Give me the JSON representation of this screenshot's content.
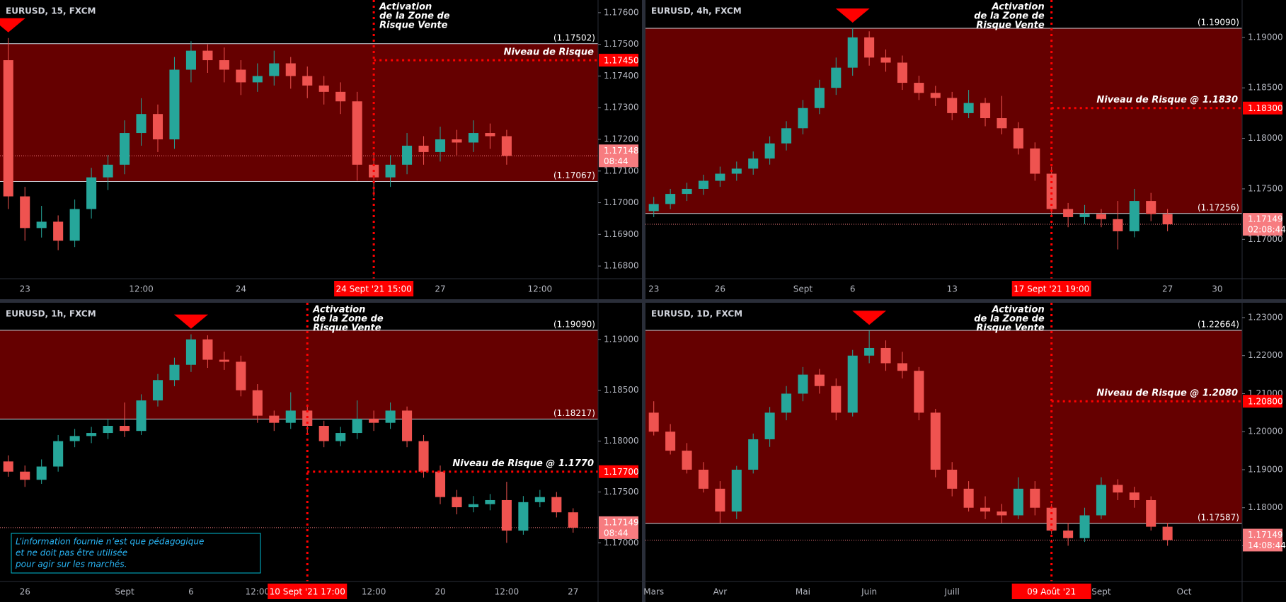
{
  "chart_data": [
    {
      "type": "candlestick",
      "title": "EURUSD, 15, FXCM",
      "categories": [
        null,
        "23",
        null,
        null,
        null,
        null,
        null,
        null,
        "12:00",
        null,
        null,
        null,
        null,
        null,
        "24",
        null,
        null,
        null,
        null,
        null,
        null,
        null,
        "24 Sept '21 15:00",
        null,
        null,
        null,
        "27",
        null,
        null,
        null,
        null,
        null,
        "12:00",
        null,
        null,
        null
      ],
      "candles": [
        [
          1.1745,
          1.1752,
          1.1698,
          1.1702
        ],
        [
          1.1702,
          1.1705,
          1.1688,
          1.1692
        ],
        [
          1.1692,
          1.1699,
          1.1689,
          1.1694
        ],
        [
          1.1694,
          1.1696,
          1.1685,
          1.1688
        ],
        [
          1.1688,
          1.1701,
          1.1686,
          1.1698
        ],
        [
          1.1698,
          1.1711,
          1.1695,
          1.1708
        ],
        [
          1.1708,
          1.1715,
          1.1704,
          1.1712
        ],
        [
          1.1712,
          1.1726,
          1.1709,
          1.1722
        ],
        [
          1.1722,
          1.1733,
          1.1718,
          1.1728
        ],
        [
          1.1728,
          1.1731,
          1.1716,
          1.172
        ],
        [
          1.172,
          1.1746,
          1.1717,
          1.1742
        ],
        [
          1.1742,
          1.1751,
          1.1738,
          1.1748
        ],
        [
          1.1748,
          1.175,
          1.1741,
          1.1745
        ],
        [
          1.1745,
          1.1749,
          1.1738,
          1.1742
        ],
        [
          1.1742,
          1.1745,
          1.1734,
          1.1738
        ],
        [
          1.1738,
          1.1744,
          1.1735,
          1.174
        ],
        [
          1.174,
          1.1748,
          1.1737,
          1.1744
        ],
        [
          1.1744,
          1.1746,
          1.1736,
          1.174
        ],
        [
          1.174,
          1.1743,
          1.1733,
          1.1737
        ],
        [
          1.1737,
          1.174,
          1.1731,
          1.1735
        ],
        [
          1.1735,
          1.1738,
          1.1728,
          1.1732
        ],
        [
          1.1732,
          1.1735,
          1.1707,
          1.1712
        ],
        [
          1.1712,
          1.1716,
          1.1702,
          1.1708
        ],
        [
          1.1708,
          1.1715,
          1.1705,
          1.1712
        ],
        [
          1.1712,
          1.1722,
          1.1709,
          1.1718
        ],
        [
          1.1718,
          1.1721,
          1.1712,
          1.1716
        ],
        [
          1.1716,
          1.1724,
          1.1713,
          1.172
        ],
        [
          1.172,
          1.1723,
          1.1715,
          1.1719
        ],
        [
          1.1719,
          1.1726,
          1.1716,
          1.1722
        ],
        [
          1.1722,
          1.1725,
          1.1717,
          1.1721
        ],
        [
          1.1721,
          1.1723,
          1.1712,
          1.17148
        ],
        null,
        null,
        null,
        null,
        null
      ],
      "colors": {
        "up": "#26a69a",
        "down": "#ef5350"
      },
      "ylim": [
        1.1676,
        1.1764
      ],
      "yticks": [
        {
          "value": 1.176,
          "label": "1.17600"
        },
        {
          "value": 1.175,
          "label": "1.17500"
        },
        {
          "value": 1.174,
          "label": "1.17400"
        },
        {
          "value": 1.173,
          "label": "1.17300"
        },
        {
          "value": 1.172,
          "label": "1.17200"
        },
        {
          "value": 1.171,
          "label": "1.17100"
        },
        {
          "value": 1.17,
          "label": "1.17000"
        },
        {
          "value": 1.169,
          "label": "1.16900"
        },
        {
          "value": 1.168,
          "label": "1.16800"
        }
      ],
      "zone": {
        "top": {
          "value": 1.17502,
          "label": "(1.17502)"
        },
        "bottom": {
          "value": 1.17067,
          "label": "(1.17067)"
        },
        "color": "#650000"
      },
      "risk": {
        "value": 1.1745,
        "label": "1.17450",
        "text": "Niveau de Risque"
      },
      "activation": {
        "index": 22,
        "text": [
          "Activation",
          "de la Zone de",
          "Risque Vente"
        ]
      },
      "price": {
        "value": 1.17148,
        "label": "1.17148",
        "countdown": "08:44"
      }
    },
    {
      "type": "candlestick",
      "title": "EURUSD, 4h, FXCM",
      "categories": [
        "23",
        null,
        null,
        null,
        "26",
        null,
        null,
        null,
        null,
        "Sept",
        null,
        null,
        "6",
        null,
        null,
        null,
        null,
        null,
        "13",
        null,
        null,
        null,
        null,
        null,
        "17 Sept '21 19:00",
        null,
        null,
        null,
        null,
        null,
        null,
        "27",
        null,
        null,
        "30",
        null
      ],
      "candles": [
        [
          1.1728,
          1.1742,
          1.1722,
          1.1735
        ],
        [
          1.1735,
          1.175,
          1.173,
          1.1745
        ],
        [
          1.1745,
          1.1756,
          1.1738,
          1.175
        ],
        [
          1.175,
          1.1764,
          1.1744,
          1.1758
        ],
        [
          1.1758,
          1.1772,
          1.1752,
          1.1765
        ],
        [
          1.1765,
          1.1777,
          1.1758,
          1.177
        ],
        [
          1.177,
          1.1787,
          1.1764,
          1.178
        ],
        [
          1.178,
          1.1802,
          1.1774,
          1.1795
        ],
        [
          1.1795,
          1.1817,
          1.1788,
          1.181
        ],
        [
          1.181,
          1.1838,
          1.1804,
          1.183
        ],
        [
          1.183,
          1.1858,
          1.1824,
          1.185
        ],
        [
          1.185,
          1.188,
          1.1843,
          1.187
        ],
        [
          1.187,
          1.1909,
          1.1862,
          1.19
        ],
        [
          1.19,
          1.1906,
          1.1872,
          1.188
        ],
        [
          1.188,
          1.1888,
          1.1866,
          1.1875
        ],
        [
          1.1875,
          1.1882,
          1.1848,
          1.1855
        ],
        [
          1.1855,
          1.1862,
          1.1838,
          1.1845
        ],
        [
          1.1845,
          1.1852,
          1.1832,
          1.184
        ],
        [
          1.184,
          1.1846,
          1.1818,
          1.1825
        ],
        [
          1.1825,
          1.1848,
          1.182,
          1.1835
        ],
        [
          1.1835,
          1.184,
          1.1812,
          1.182
        ],
        [
          1.182,
          1.1842,
          1.1804,
          1.181
        ],
        [
          1.181,
          1.1816,
          1.1784,
          1.179
        ],
        [
          1.179,
          1.1796,
          1.1758,
          1.1765
        ],
        [
          1.1765,
          1.1772,
          1.1722,
          1.173
        ],
        [
          1.173,
          1.1736,
          1.1712,
          1.1722
        ],
        [
          1.1722,
          1.1734,
          1.1715,
          1.1725
        ],
        [
          1.1725,
          1.173,
          1.1712,
          1.172
        ],
        [
          1.172,
          1.1738,
          1.169,
          1.1708
        ],
        [
          1.1708,
          1.175,
          1.1702,
          1.1738
        ],
        [
          1.1738,
          1.1746,
          1.1718,
          1.1725
        ],
        [
          1.1725,
          1.173,
          1.1708,
          1.17149
        ],
        null,
        null,
        null,
        null
      ],
      "colors": {
        "up": "#26a69a",
        "down": "#ef5350"
      },
      "ylim": [
        1.1661,
        1.1937
      ],
      "yticks": [
        {
          "value": 1.19,
          "label": "1.19000"
        },
        {
          "value": 1.185,
          "label": "1.18500"
        },
        {
          "value": 1.18,
          "label": "1.18000"
        },
        {
          "value": 1.175,
          "label": "1.17500"
        },
        {
          "value": 1.17,
          "label": "1.17000"
        }
      ],
      "zone": {
        "top": {
          "value": 1.1909,
          "label": "(1.19090)"
        },
        "bottom": {
          "value": 1.17256,
          "label": "(1.17256)"
        },
        "color": "#650000"
      },
      "risk": {
        "value": 1.183,
        "label": "1.18300",
        "text": "Niveau de Risque @ 1.1830"
      },
      "activation": {
        "index": 24,
        "text": [
          "Activation",
          "de la Zone de",
          "Risque Vente"
        ]
      },
      "price": {
        "value": 1.17149,
        "label": "1.17149",
        "countdown": "02:08:44"
      }
    },
    {
      "type": "candlestick",
      "title": "EURUSD, 1h, FXCM",
      "categories": [
        null,
        "26",
        null,
        null,
        null,
        null,
        null,
        "Sept",
        null,
        null,
        null,
        "6",
        null,
        null,
        null,
        "12:00",
        null,
        null,
        "10 Sept '21 17:00",
        null,
        null,
        null,
        "12:00",
        null,
        null,
        null,
        "20",
        null,
        null,
        null,
        "12:00",
        null,
        null,
        null,
        "27",
        null
      ],
      "candles": [
        [
          1.178,
          1.1786,
          1.1765,
          1.177
        ],
        [
          1.177,
          1.1776,
          1.1755,
          1.1762
        ],
        [
          1.1762,
          1.1782,
          1.1758,
          1.1775
        ],
        [
          1.1775,
          1.1806,
          1.177,
          1.18
        ],
        [
          1.18,
          1.1812,
          1.1794,
          1.1805
        ],
        [
          1.1805,
          1.1814,
          1.1798,
          1.1808
        ],
        [
          1.1808,
          1.1822,
          1.1802,
          1.1815
        ],
        [
          1.1815,
          1.1838,
          1.1804,
          1.181
        ],
        [
          1.181,
          1.1846,
          1.1806,
          1.184
        ],
        [
          1.184,
          1.1866,
          1.1834,
          1.186
        ],
        [
          1.186,
          1.1882,
          1.1854,
          1.1875
        ],
        [
          1.1875,
          1.1905,
          1.1868,
          1.19
        ],
        [
          1.19,
          1.1904,
          1.1872,
          1.188
        ],
        [
          1.188,
          1.1888,
          1.187,
          1.1878
        ],
        [
          1.1878,
          1.1884,
          1.1844,
          1.185
        ],
        [
          1.185,
          1.1856,
          1.1818,
          1.1825
        ],
        [
          1.1825,
          1.183,
          1.181,
          1.1818
        ],
        [
          1.1818,
          1.1848,
          1.1812,
          1.183
        ],
        [
          1.183,
          1.1836,
          1.1808,
          1.1815
        ],
        [
          1.1815,
          1.182,
          1.1794,
          1.18
        ],
        [
          1.18,
          1.1814,
          1.1795,
          1.1808
        ],
        [
          1.1808,
          1.184,
          1.1802,
          1.1822
        ],
        [
          1.1822,
          1.183,
          1.181,
          1.1818
        ],
        [
          1.1818,
          1.1838,
          1.1812,
          1.183
        ],
        [
          1.183,
          1.1834,
          1.1794,
          1.18
        ],
        [
          1.18,
          1.1806,
          1.1764,
          1.177
        ],
        [
          1.177,
          1.1776,
          1.1738,
          1.1745
        ],
        [
          1.1745,
          1.1752,
          1.1728,
          1.1735
        ],
        [
          1.1735,
          1.1746,
          1.173,
          1.1738
        ],
        [
          1.1738,
          1.1748,
          1.1732,
          1.1742
        ],
        [
          1.1742,
          1.176,
          1.17,
          1.1712
        ],
        [
          1.1712,
          1.1746,
          1.1708,
          1.174
        ],
        [
          1.174,
          1.1752,
          1.1735,
          1.1745
        ],
        [
          1.1745,
          1.175,
          1.1725,
          1.173
        ],
        [
          1.173,
          1.1734,
          1.171,
          1.17149
        ],
        null
      ],
      "colors": {
        "up": "#26a69a",
        "down": "#ef5350"
      },
      "ylim": [
        1.1662,
        1.1936
      ],
      "yticks": [
        {
          "value": 1.19,
          "label": "1.19000"
        },
        {
          "value": 1.185,
          "label": "1.18500"
        },
        {
          "value": 1.18,
          "label": "1.18000"
        },
        {
          "value": 1.175,
          "label": "1.17500"
        },
        {
          "value": 1.17,
          "label": "1.17000"
        }
      ],
      "zone": {
        "top": {
          "value": 1.1909,
          "label": "(1.19090)"
        },
        "bottom": {
          "value": 1.18217,
          "label": "(1.18217)"
        },
        "color": "#650000"
      },
      "risk": {
        "value": 1.177,
        "label": "1.17700",
        "text": "Niveau de Risque @ 1.1770"
      },
      "activation": {
        "index": 18,
        "text": [
          "Activation",
          "de la Zone de",
          "Risque Vente"
        ]
      },
      "price": {
        "value": 1.17149,
        "label": "1.17149",
        "countdown": "08:44"
      },
      "note": [
        "L’information fournie n’est que pédagogique",
        "et ne doit pas être utilisée",
        "pour agir sur les marchés."
      ]
    },
    {
      "type": "candlestick",
      "title": "EURUSD, 1D, FXCM",
      "categories": [
        "Mars",
        null,
        null,
        null,
        "Avr",
        null,
        null,
        null,
        null,
        "Mai",
        null,
        null,
        null,
        "Juin",
        null,
        null,
        null,
        null,
        "Juill",
        null,
        null,
        null,
        null,
        null,
        "09 Août '21",
        null,
        null,
        "Sept",
        null,
        null,
        null,
        null,
        "Oct",
        null,
        null,
        null
      ],
      "candles": [
        [
          1.205,
          1.208,
          1.199,
          1.2
        ],
        [
          1.2,
          1.202,
          1.194,
          1.195
        ],
        [
          1.195,
          1.197,
          1.189,
          1.19
        ],
        [
          1.19,
          1.192,
          1.184,
          1.185
        ],
        [
          1.185,
          1.187,
          1.176,
          1.179
        ],
        [
          1.179,
          1.191,
          1.177,
          1.19
        ],
        [
          1.19,
          1.1995,
          1.189,
          1.198
        ],
        [
          1.198,
          1.2065,
          1.196,
          1.205
        ],
        [
          1.205,
          1.212,
          1.203,
          1.21
        ],
        [
          1.21,
          1.217,
          1.208,
          1.215
        ],
        [
          1.215,
          1.2165,
          1.21,
          1.212
        ],
        [
          1.212,
          1.214,
          1.203,
          1.205
        ],
        [
          1.205,
          1.2215,
          1.204,
          1.22
        ],
        [
          1.22,
          1.2266,
          1.218,
          1.222
        ],
        [
          1.222,
          1.224,
          1.216,
          1.218
        ],
        [
          1.218,
          1.221,
          1.214,
          1.216
        ],
        [
          1.216,
          1.217,
          1.203,
          1.205
        ],
        [
          1.205,
          1.206,
          1.188,
          1.19
        ],
        [
          1.19,
          1.192,
          1.183,
          1.185
        ],
        [
          1.185,
          1.187,
          1.179,
          1.18
        ],
        [
          1.18,
          1.183,
          1.177,
          1.179
        ],
        [
          1.179,
          1.181,
          1.176,
          1.178
        ],
        [
          1.178,
          1.188,
          1.177,
          1.185
        ],
        [
          1.185,
          1.187,
          1.178,
          1.18
        ],
        [
          1.18,
          1.181,
          1.173,
          1.174
        ],
        [
          1.174,
          1.176,
          1.17,
          1.172
        ],
        [
          1.172,
          1.18,
          1.171,
          1.178
        ],
        [
          1.178,
          1.188,
          1.177,
          1.186
        ],
        [
          1.186,
          1.1875,
          1.182,
          1.184
        ],
        [
          1.184,
          1.1855,
          1.18,
          1.182
        ],
        [
          1.182,
          1.183,
          1.174,
          1.175
        ],
        [
          1.175,
          1.176,
          1.17,
          1.17149
        ],
        null,
        null,
        null,
        null
      ],
      "colors": {
        "up": "#26a69a",
        "down": "#ef5350"
      },
      "ylim": [
        1.1606,
        1.2339
      ],
      "yticks": [
        {
          "value": 1.23,
          "label": "1.23000"
        },
        {
          "value": 1.22,
          "label": "1.22000"
        },
        {
          "value": 1.21,
          "label": "1.21000"
        },
        {
          "value": 1.2,
          "label": "1.20000"
        },
        {
          "value": 1.19,
          "label": "1.19000"
        },
        {
          "value": 1.18,
          "label": "1.18000"
        },
        {
          "value": 1.17,
          "label": "1.17000"
        }
      ],
      "zone": {
        "top": {
          "value": 1.22664,
          "label": "(1.22664)"
        },
        "bottom": {
          "value": 1.17587,
          "label": "(1.17587)"
        },
        "color": "#650000"
      },
      "risk": {
        "value": 1.208,
        "label": "1.20800",
        "text": "Niveau de Risque @ 1.2080"
      },
      "activation": {
        "index": 24,
        "text": [
          "Activation",
          "de la Zone de",
          "Risque Vente"
        ]
      },
      "price": {
        "value": 1.17149,
        "label": "1.17149",
        "countdown": "14:08:44"
      }
    }
  ]
}
